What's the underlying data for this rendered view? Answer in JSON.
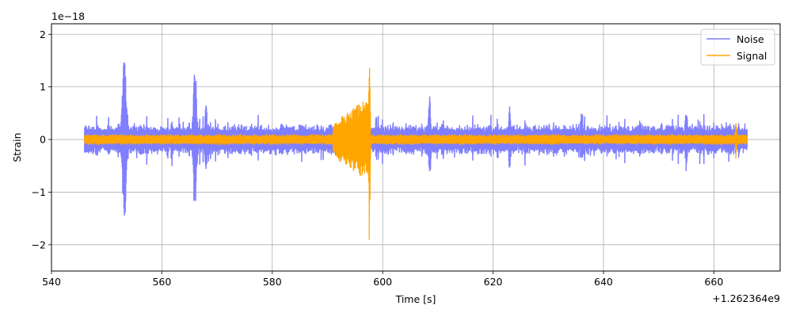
{
  "chart_data": {
    "type": "line",
    "title": "",
    "xlabel": "Time [s]",
    "ylabel": "Strain",
    "x_offset_text": "+1.262364e9",
    "y_scale_text": "1e−18",
    "xlim": [
      540,
      672
    ],
    "ylim": [
      -2.5,
      2.2
    ],
    "x_ticks": [
      540,
      560,
      580,
      600,
      620,
      640,
      660
    ],
    "y_ticks": [
      -2,
      -1,
      0,
      1,
      2
    ],
    "x_tick_labels": [
      "540",
      "560",
      "580",
      "600",
      "620",
      "640",
      "660"
    ],
    "y_tick_labels": [
      "−2",
      "−1",
      "0",
      "1",
      "2"
    ],
    "grid": true,
    "legend_position": "top-right",
    "series": [
      {
        "name": "Noise",
        "color": "#7f7fff",
        "x_range": [
          546,
          666
        ],
        "base_amplitude": 0.28,
        "bursts": [
          {
            "center": 553.2,
            "width": 0.5,
            "max": 1.55,
            "min": -1.65
          },
          {
            "center": 566.0,
            "width": 0.4,
            "max": 1.45,
            "min": -1.45
          },
          {
            "center": 568.0,
            "width": 0.3,
            "max": 0.72,
            "min": -0.6
          },
          {
            "center": 608.5,
            "width": 0.3,
            "max": 0.85,
            "min": -0.85
          },
          {
            "center": 623.0,
            "width": 0.3,
            "max": 0.62,
            "min": -0.6
          },
          {
            "center": 655.0,
            "width": 0.3,
            "max": 0.62,
            "min": -0.6
          }
        ]
      },
      {
        "name": "Signal",
        "color": "#ffa500",
        "x_range": [
          546,
          666
        ],
        "base_amplitude": 0.1,
        "chirp": {
          "start": 591.0,
          "peak": 597.6,
          "peak_max": 2.0,
          "peak_min": -2.3
        },
        "spike": {
          "center": 664.0,
          "max": 0.48,
          "min": -0.42
        }
      }
    ]
  }
}
